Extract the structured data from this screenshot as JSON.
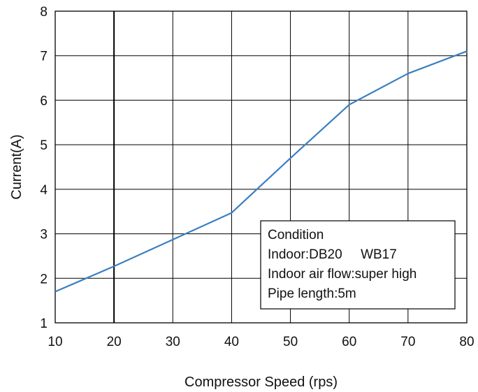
{
  "chart_data": {
    "type": "line",
    "xlabel": "Compressor Speed (rps)",
    "ylabel": "Current(A)",
    "xlim": [
      10,
      80
    ],
    "ylim": [
      1,
      8
    ],
    "x_ticks": [
      10,
      20,
      30,
      40,
      50,
      60,
      70,
      80
    ],
    "y_ticks": [
      1,
      2,
      3,
      4,
      5,
      6,
      7,
      8
    ],
    "grid": true,
    "line_color": "#3a7fc0",
    "series": [
      {
        "x": [
          10,
          20,
          30,
          40,
          50,
          60,
          70,
          80
        ],
        "values": [
          1.7,
          2.27,
          2.87,
          3.47,
          4.7,
          5.9,
          6.6,
          7.1
        ]
      }
    ],
    "annotation": {
      "lines": [
        "Condition",
        "Indoor:DB20     WB17",
        "Indoor air flow:super high",
        "Pipe length:5m"
      ]
    }
  }
}
